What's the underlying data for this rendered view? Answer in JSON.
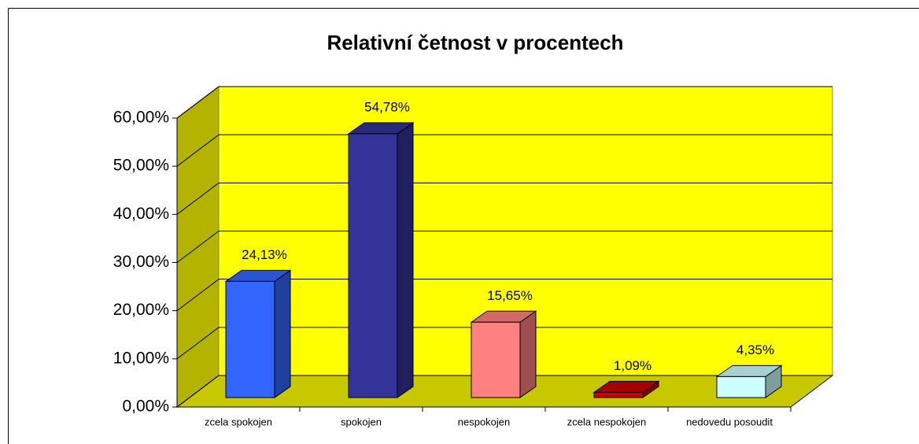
{
  "chart_data": {
    "type": "bar3d",
    "title": "Relativní četnost v procentech",
    "categories": [
      "zcela spokojen",
      "spokojen",
      "nespokojen",
      "zcela nespokojen",
      "nedovedu posoudit"
    ],
    "values": [
      24.13,
      54.78,
      15.65,
      1.09,
      4.35
    ],
    "value_labels": [
      "24,13%",
      "54,78%",
      "15,65%",
      "1,09%",
      "4,35%"
    ],
    "colors": [
      "#3366ff",
      "#333399",
      "#ff8080",
      "#cc0000",
      "#ccffff"
    ],
    "ylim": [
      0,
      60
    ],
    "yticks": [
      {
        "value": 0,
        "label": "0,00%"
      },
      {
        "value": 10,
        "label": "10,00%"
      },
      {
        "value": 20,
        "label": "20,00%"
      },
      {
        "value": 30,
        "label": "30,00%"
      },
      {
        "value": 40,
        "label": "40,00%"
      },
      {
        "value": 50,
        "label": "50,00%"
      },
      {
        "value": 60,
        "label": "60,00%"
      }
    ],
    "grid": true,
    "wall_color": "#ffff00"
  }
}
